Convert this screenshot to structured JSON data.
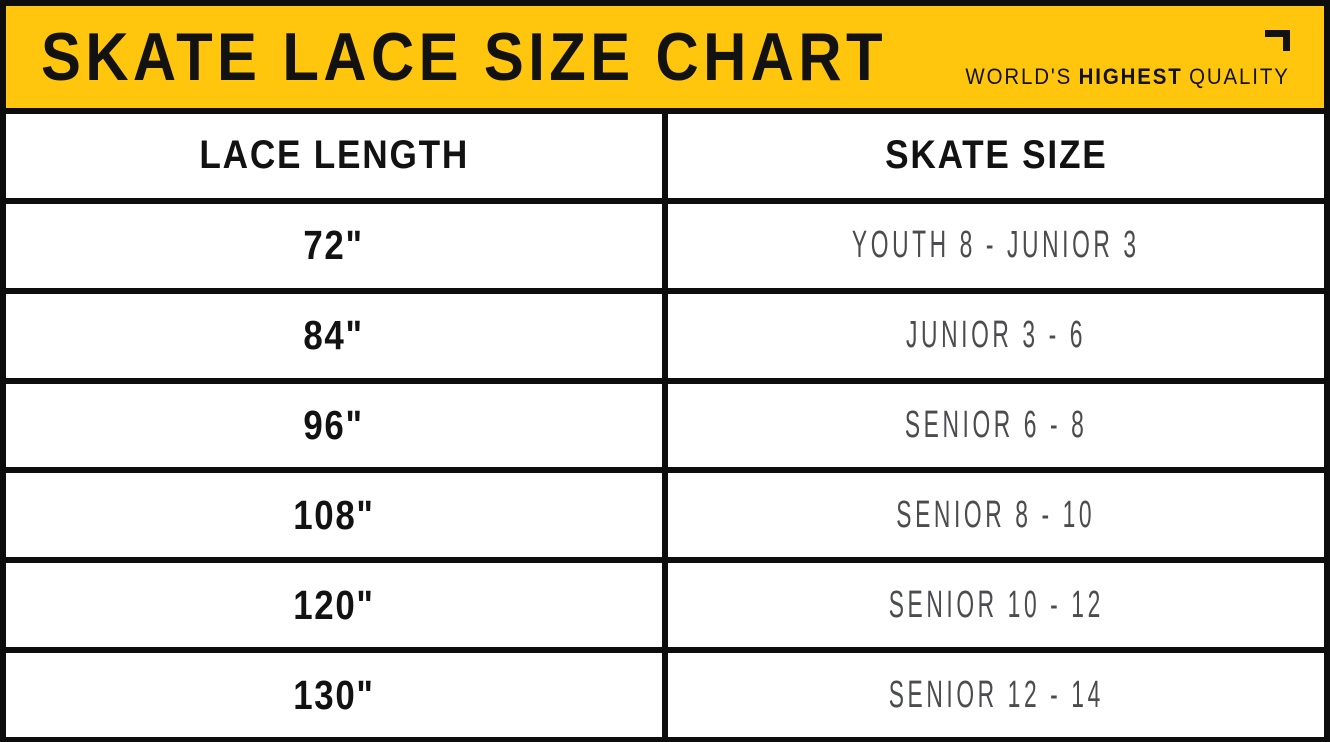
{
  "header": {
    "title": "SKATE LACE SIZE CHART",
    "tagline": {
      "prefix": "WORLD'S",
      "emphasis": "HIGHEST",
      "suffix": "QUALITY"
    }
  },
  "icons": {
    "corner_bracket": "corner-bracket-icon"
  },
  "colors": {
    "banner_yellow": "#FFC60D",
    "line_black": "#0D0D0D",
    "heading_text": "#121212",
    "size_text_gray": "#4B4C4E",
    "cell_white": "#FFFFFF"
  },
  "table": {
    "columns": [
      "LACE LENGTH",
      "SKATE SIZE"
    ],
    "rows": [
      {
        "lace_length": "72\"",
        "skate_size": "YOUTH 8 - JUNIOR 3"
      },
      {
        "lace_length": "84\"",
        "skate_size": "JUNIOR 3 - 6"
      },
      {
        "lace_length": "96\"",
        "skate_size": "SENIOR 6 - 8"
      },
      {
        "lace_length": "108\"",
        "skate_size": "SENIOR 8 - 10"
      },
      {
        "lace_length": "120\"",
        "skate_size": "SENIOR 10 - 12"
      },
      {
        "lace_length": "130\"",
        "skate_size": "SENIOR 12 - 14"
      }
    ]
  },
  "chart_data": {
    "type": "table",
    "title": "SKATE LACE SIZE CHART",
    "columns": [
      "LACE LENGTH",
      "SKATE SIZE"
    ],
    "rows": [
      [
        "72\"",
        "YOUTH 8 - JUNIOR 3"
      ],
      [
        "84\"",
        "JUNIOR 3 - 6"
      ],
      [
        "96\"",
        "SENIOR 6 - 8"
      ],
      [
        "108\"",
        "SENIOR 8 - 10"
      ],
      [
        "120\"",
        "SENIOR 10 - 12"
      ],
      [
        "130\"",
        "SENIOR 12 - 14"
      ]
    ]
  }
}
